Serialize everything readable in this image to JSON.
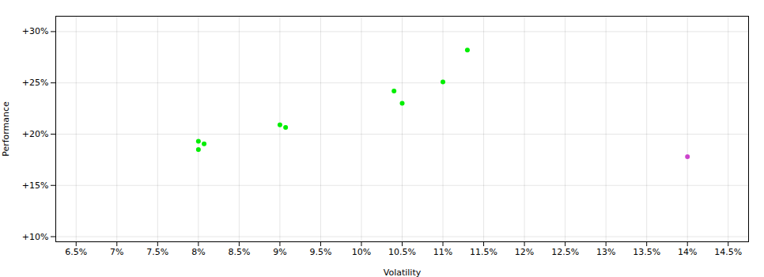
{
  "chart_data": {
    "type": "scatter",
    "xlabel": "Volatility",
    "ylabel": "Performance",
    "series": [
      {
        "color": "#00ee00",
        "x": [
          8.0,
          8.07,
          8.0,
          9.0,
          9.07,
          10.4,
          10.5,
          11.0,
          11.3
        ],
        "values": [
          19.3,
          19.05,
          18.5,
          20.9,
          20.65,
          24.2,
          23.0,
          25.1,
          28.2
        ]
      },
      {
        "color": "#cc44cc",
        "x": [
          14.0
        ],
        "values": [
          17.8
        ]
      }
    ],
    "xlim": [
      6.25,
      14.75
    ],
    "ylim": [
      9.5,
      31.5
    ],
    "xticks": [
      {
        "value": 6.5,
        "label": "6.5%"
      },
      {
        "value": 7.0,
        "label": "7%"
      },
      {
        "value": 7.5,
        "label": "7.5%"
      },
      {
        "value": 8.0,
        "label": "8%"
      },
      {
        "value": 8.5,
        "label": "8.5%"
      },
      {
        "value": 9.0,
        "label": "9%"
      },
      {
        "value": 9.5,
        "label": "9.5%"
      },
      {
        "value": 10.0,
        "label": "10%"
      },
      {
        "value": 10.5,
        "label": "10.5%"
      },
      {
        "value": 11.0,
        "label": "11%"
      },
      {
        "value": 11.5,
        "label": "11.5%"
      },
      {
        "value": 12.0,
        "label": "12%"
      },
      {
        "value": 12.5,
        "label": "12.5%"
      },
      {
        "value": 13.0,
        "label": "13%"
      },
      {
        "value": 13.5,
        "label": "13.5%"
      },
      {
        "value": 14.0,
        "label": "14%"
      },
      {
        "value": 14.5,
        "label": "14.5%"
      }
    ],
    "yticks": [
      {
        "value": 10,
        "label": "+10%"
      },
      {
        "value": 15,
        "label": "+15%"
      },
      {
        "value": 20,
        "label": "+20%"
      },
      {
        "value": 25,
        "label": "+25%"
      },
      {
        "value": 30,
        "label": "+30%"
      }
    ],
    "grid": true
  }
}
